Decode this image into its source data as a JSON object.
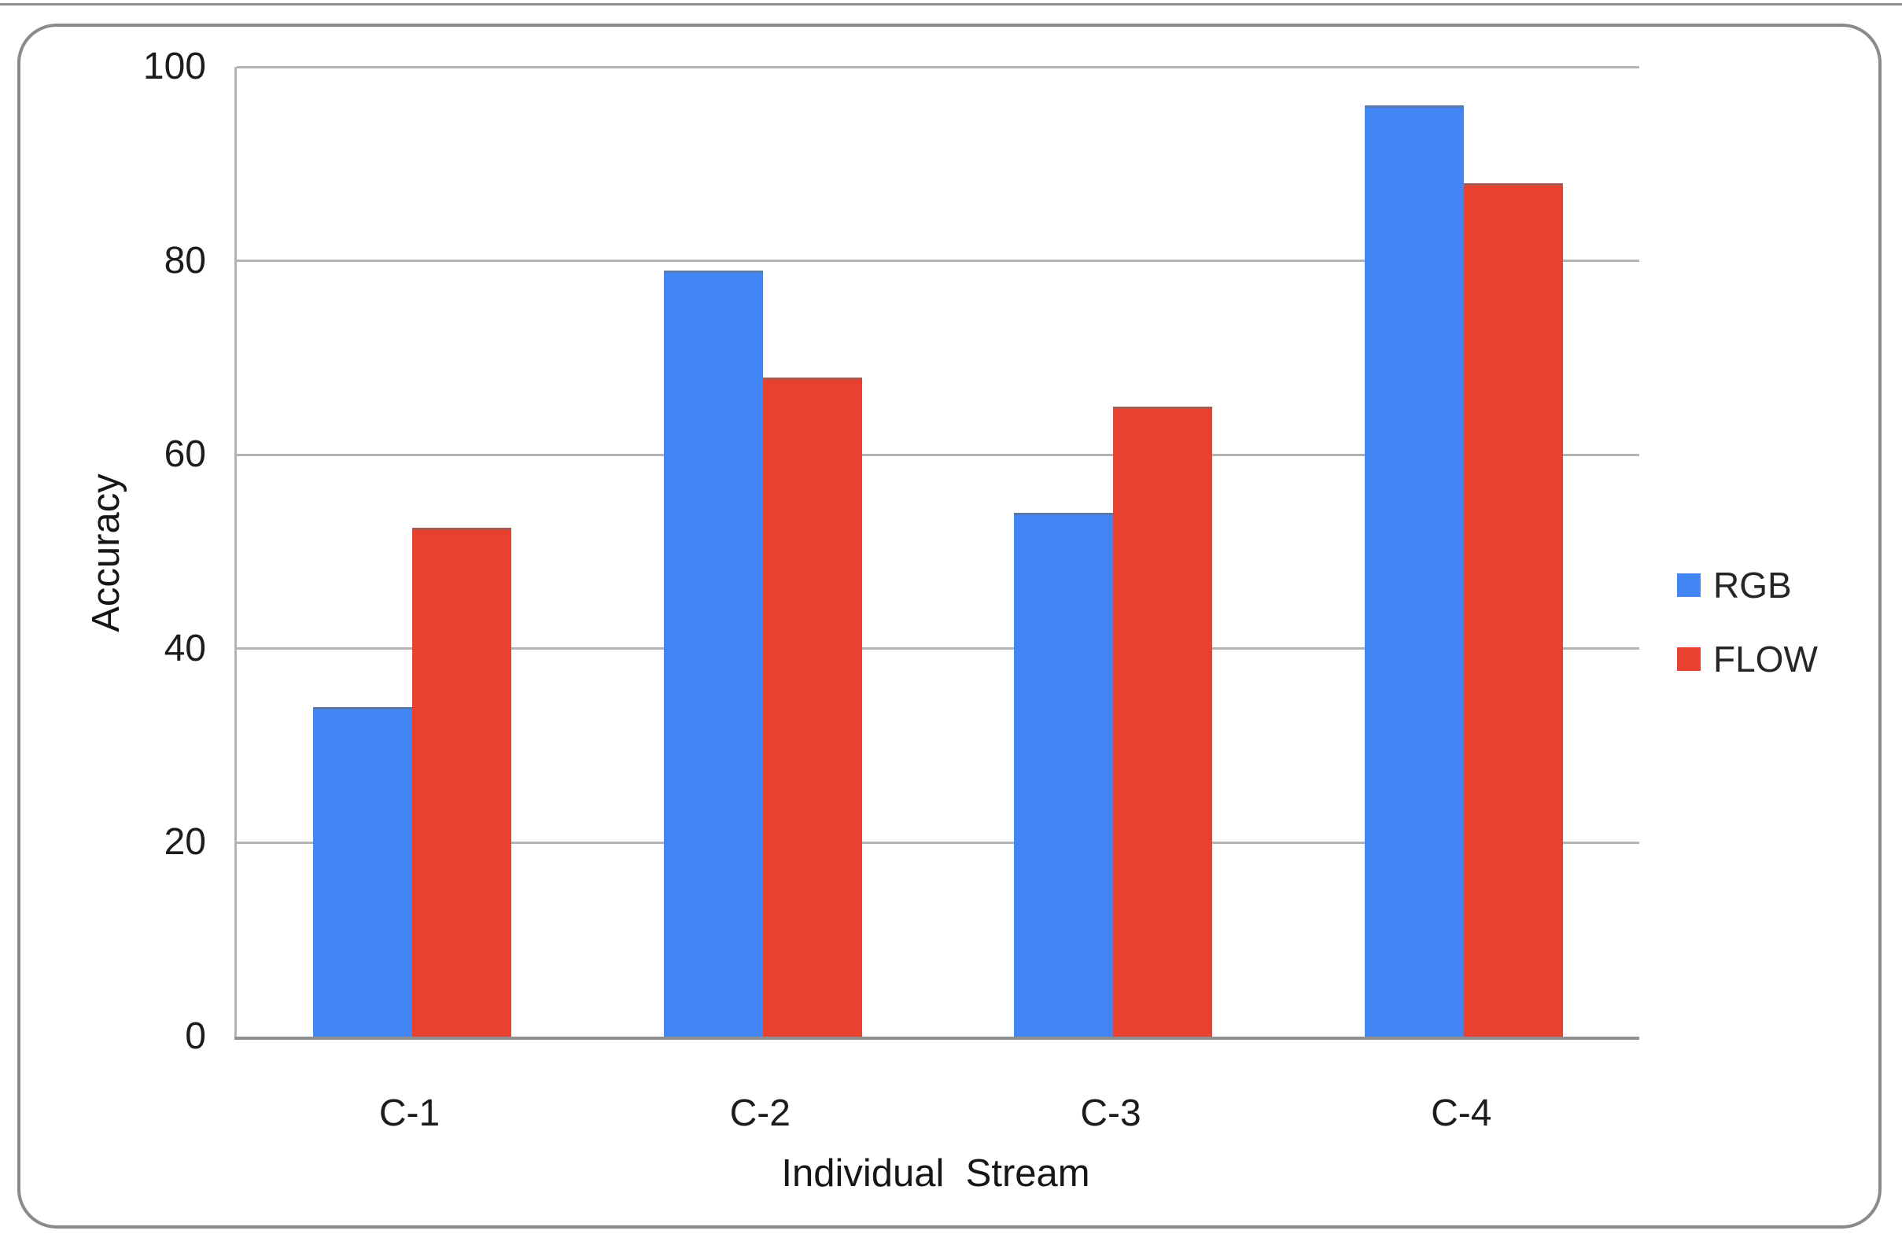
{
  "chart_data": {
    "type": "bar",
    "title": "",
    "categories": [
      "C-1",
      "C-2",
      "C-3",
      "C-4"
    ],
    "series": [
      {
        "name": "RGB",
        "color": "#4285F4",
        "values": [
          34,
          79,
          54,
          96
        ]
      },
      {
        "name": "FLOW",
        "color": "#E8412F",
        "values": [
          52.5,
          68,
          65,
          88
        ]
      }
    ],
    "xlabel": "Individual  Stream",
    "ylabel": "Accuracy",
    "ylim": [
      0,
      100
    ],
    "yticks": [
      0,
      20,
      40,
      60,
      80,
      100
    ],
    "grid": true,
    "legend_position": "right"
  },
  "colors": {
    "gridline": "#b3b3b3",
    "axis": "#8f8f8f",
    "frame_border": "#8a8a8a",
    "text": "#1c1c1c"
  }
}
